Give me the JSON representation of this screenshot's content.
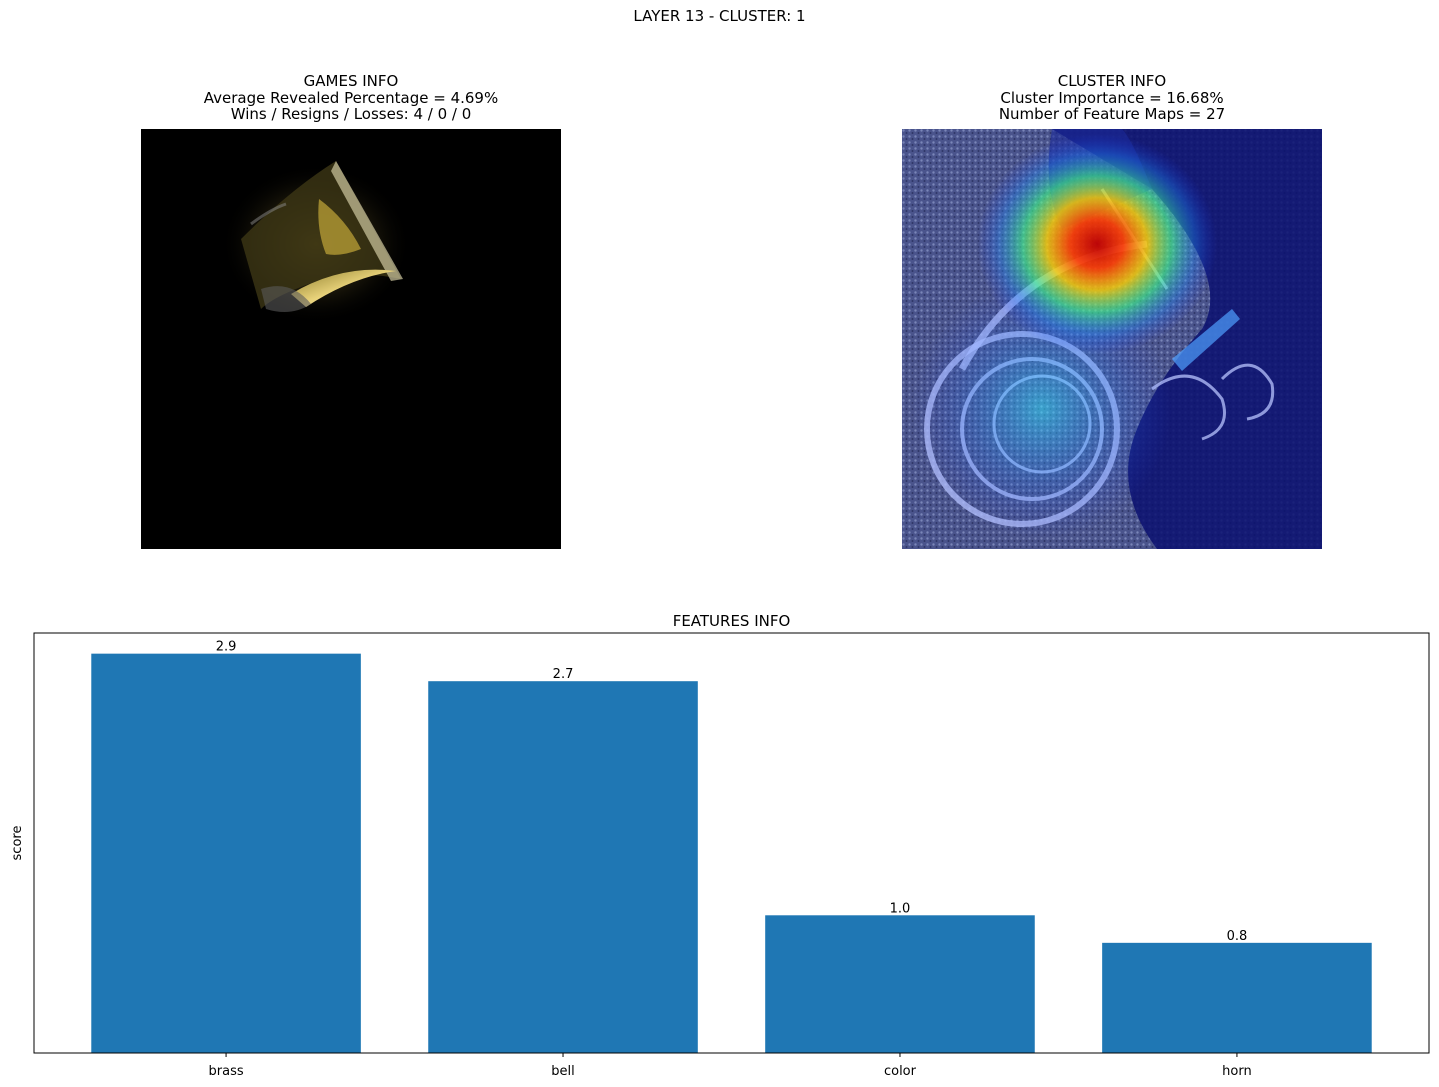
{
  "figure": {
    "suptitle": "LAYER 13 - CLUSTER: 1"
  },
  "games_info": {
    "title": "GAMES INFO",
    "line1": "Average Revealed Percentage = 4.69%",
    "line2": "Wins / Resigns / Losses: 4 / 0 / 0"
  },
  "cluster_info": {
    "title": "CLUSTER INFO",
    "line1": "Cluster Importance = 16.68%",
    "line2": "Number of Feature Maps = 27"
  },
  "chart_data": {
    "type": "bar",
    "title": "FEATURES INFO",
    "xlabel": "",
    "ylabel": "score",
    "categories": [
      "brass",
      "bell",
      "color",
      "horn"
    ],
    "values": [
      2.9,
      2.7,
      1.0,
      0.8
    ],
    "value_labels": [
      "2.9",
      "2.7",
      "1.0",
      "0.8"
    ],
    "ylim": [
      0,
      3.05
    ],
    "bar_color": "#1f77b4",
    "grid": false,
    "y_ticks_shown": false
  }
}
